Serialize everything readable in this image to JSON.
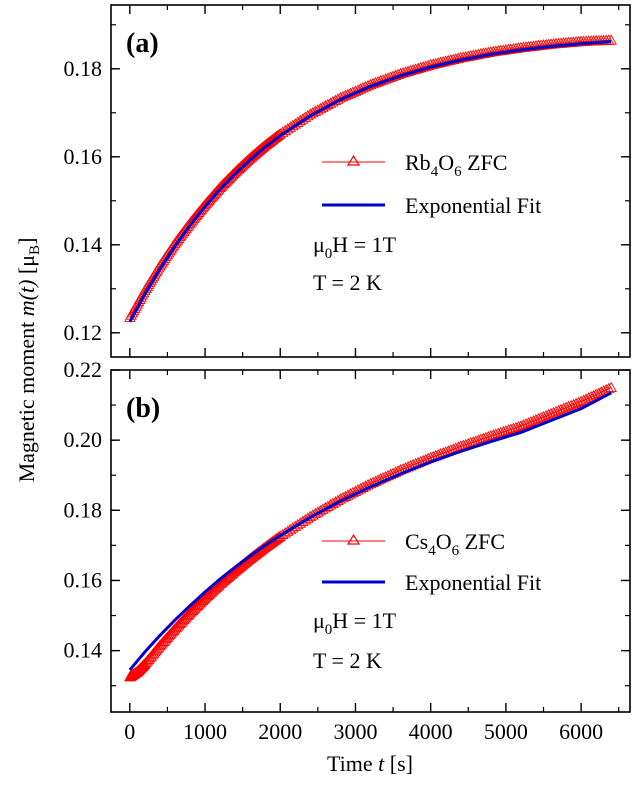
{
  "figure": {
    "ylabel_text": "Magnetic moment",
    "ylabel_var": "m(t)",
    "ylabel_unit": "[μB]",
    "xlabel_text": "Time",
    "xlabel_var": "t",
    "xlabel_unit": "[s]"
  },
  "chart_data": [
    {
      "type": "line",
      "panel_label": "(a)",
      "xlim": [
        -250,
        6650
      ],
      "ylim": [
        0.1145,
        0.1945
      ],
      "x_ticks": [
        0,
        1000,
        2000,
        3000,
        4000,
        5000,
        6000
      ],
      "y_ticks": [
        0.12,
        0.14,
        0.16,
        0.18
      ],
      "y_tick_labels": [
        "0.12",
        "0.14",
        "0.16",
        "0.18"
      ],
      "legend_placement": "center-right",
      "series": [
        {
          "name": "Rb4O6 ZFC",
          "color": "#ff0000",
          "marker": "open-triangle",
          "x": [
            0,
            200,
            400,
            600,
            800,
            1000,
            1200,
            1400,
            1600,
            1800,
            2000,
            2400,
            2800,
            3200,
            3600,
            4000,
            4400,
            4800,
            5200,
            5600,
            6000,
            6400
          ],
          "y": [
            0.1235,
            0.1296,
            0.1352,
            0.1403,
            0.1449,
            0.1491,
            0.153,
            0.1565,
            0.1597,
            0.1626,
            0.1652,
            0.1697,
            0.1734,
            0.1764,
            0.1789,
            0.1809,
            0.1825,
            0.1838,
            0.1848,
            0.1856,
            0.1862,
            0.1865
          ]
        },
        {
          "name": "Exponential Fit",
          "color": "#0000cc",
          "x": [
            0,
            200,
            400,
            600,
            800,
            1000,
            1200,
            1400,
            1600,
            1800,
            2000,
            2400,
            2800,
            3200,
            3600,
            4000,
            4400,
            4800,
            5200,
            5600,
            6000,
            6400
          ],
          "y": [
            0.1225,
            0.1288,
            0.1345,
            0.1397,
            0.1444,
            0.1487,
            0.1526,
            0.1561,
            0.1593,
            0.1622,
            0.1648,
            0.1693,
            0.173,
            0.176,
            0.1784,
            0.1804,
            0.182,
            0.1833,
            0.1843,
            0.1851,
            0.1857,
            0.1862
          ]
        }
      ],
      "annotations": [
        {
          "prefix": "μ",
          "sub": "0",
          "text": "H = 1T"
        },
        {
          "prefix": "",
          "sub": "",
          "text": "T = 2 K"
        }
      ]
    },
    {
      "type": "line",
      "panel_label": "(b)",
      "xlim": [
        -250,
        6650
      ],
      "ylim": [
        0.1225,
        0.22
      ],
      "x_ticks": [
        0,
        1000,
        2000,
        3000,
        4000,
        5000,
        6000
      ],
      "x_tick_labels": [
        "0",
        "1000",
        "2000",
        "3000",
        "4000",
        "5000",
        "6000"
      ],
      "y_ticks": [
        0.14,
        0.16,
        0.18,
        0.2,
        0.22
      ],
      "y_tick_labels": [
        "0.14",
        "0.16",
        "0.18",
        "0.20",
        "0.22"
      ],
      "legend_placement": "center-right",
      "series": [
        {
          "name": "Cs4O6 ZFC",
          "color": "#ff0000",
          "marker": "open-triangle",
          "x": [
            0,
            100,
            200,
            400,
            600,
            800,
            1000,
            1200,
            1400,
            1600,
            1800,
            2000,
            2400,
            2800,
            3200,
            3600,
            4000,
            4400,
            4800,
            5200,
            5600,
            6000,
            6400
          ],
          "y": [
            0.1325,
            0.134,
            0.1362,
            0.1414,
            0.1462,
            0.1507,
            0.155,
            0.159,
            0.1627,
            0.1662,
            0.1695,
            0.1726,
            0.1782,
            0.1832,
            0.1876,
            0.1915,
            0.195,
            0.1982,
            0.2012,
            0.204,
            0.2075,
            0.211,
            0.215
          ]
        },
        {
          "name": "Exponential Fit",
          "color": "#0000cc",
          "x": [
            0,
            200,
            400,
            600,
            800,
            1000,
            1200,
            1400,
            1600,
            1800,
            2000,
            2400,
            2800,
            3200,
            3600,
            4000,
            4400,
            4800,
            5200,
            5600,
            6000,
            6400
          ],
          "y": [
            0.1345,
            0.1396,
            0.1443,
            0.1487,
            0.1528,
            0.1567,
            0.1604,
            0.1638,
            0.167,
            0.17,
            0.1728,
            0.178,
            0.1826,
            0.1867,
            0.1904,
            0.1938,
            0.1968,
            0.1996,
            0.2022,
            0.2056,
            0.209,
            0.2135
          ]
        }
      ],
      "annotations": [
        {
          "prefix": "μ",
          "sub": "0",
          "text": "H = 1T"
        },
        {
          "prefix": "",
          "sub": "",
          "text": "T = 2 K"
        }
      ]
    }
  ]
}
